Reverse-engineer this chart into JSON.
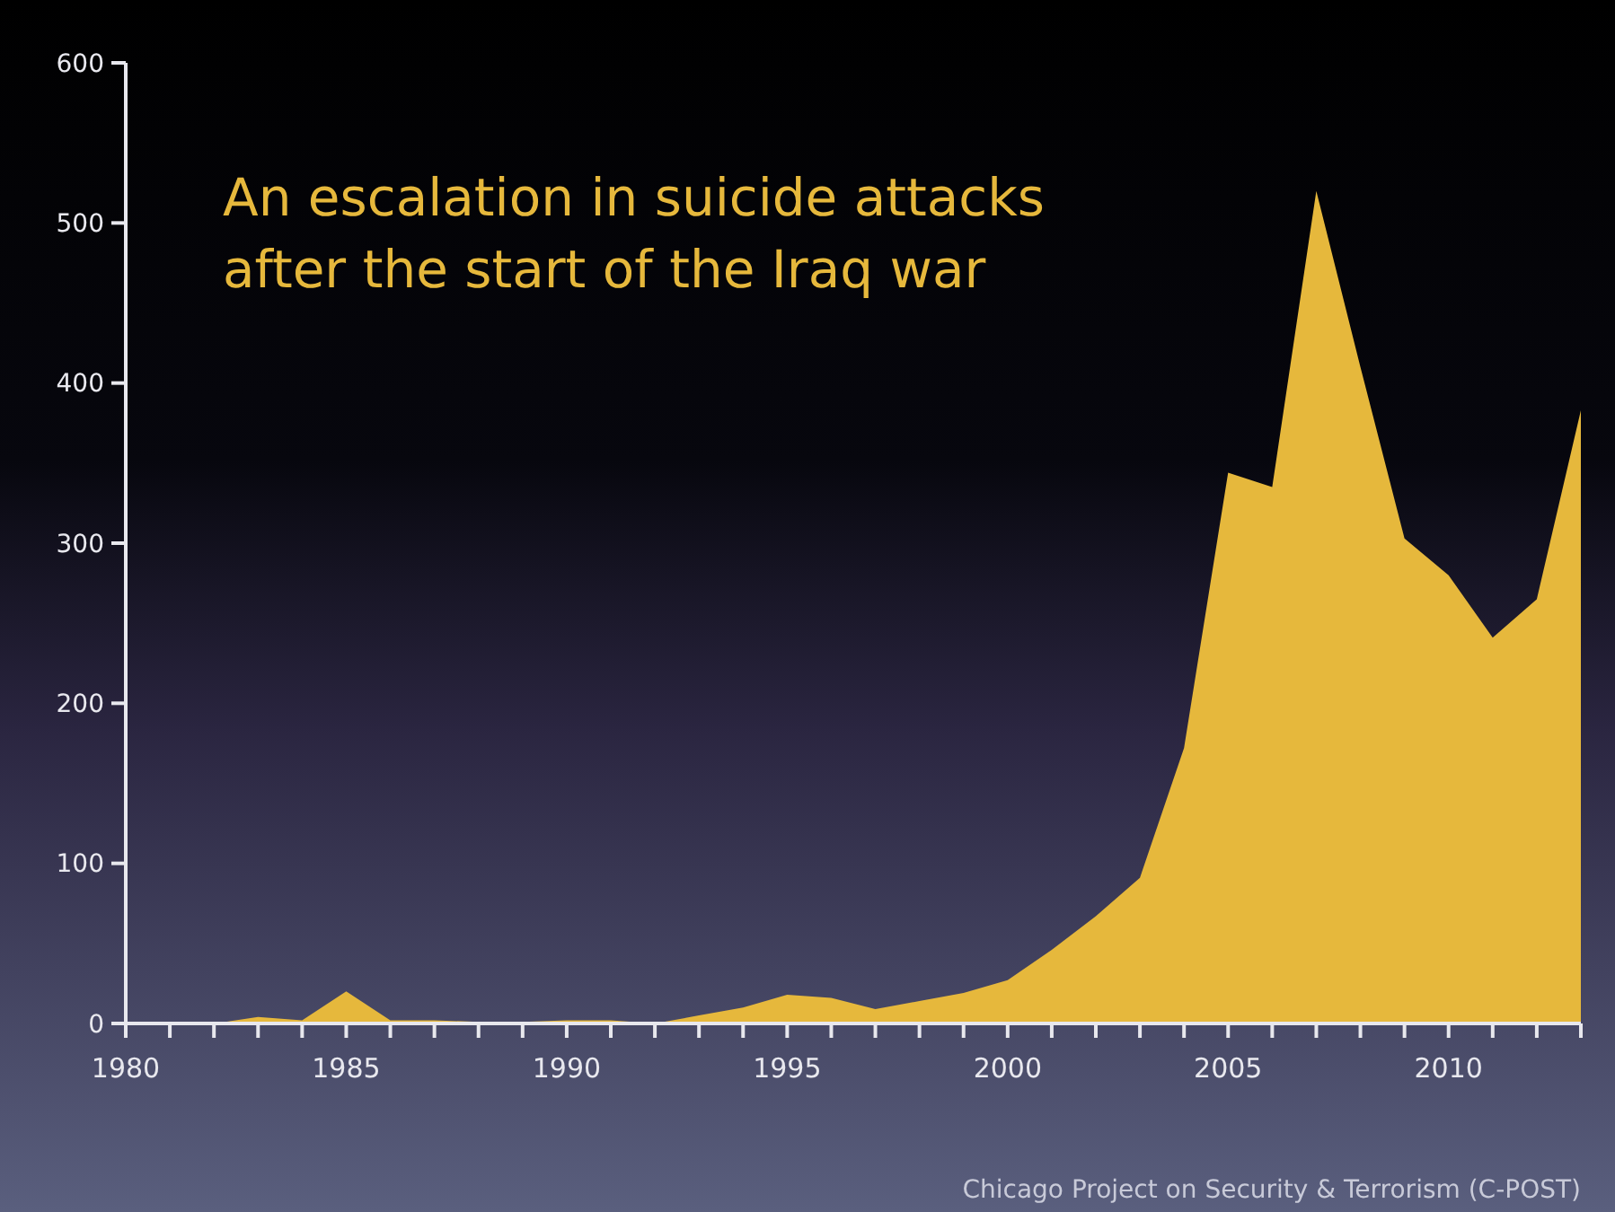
{
  "chart_data": {
    "type": "area",
    "title": "An escalation in suicide attacks after the start of the Iraq war",
    "annotations": [
      "Chicago Project on Security & Terrorism (C-POST)"
    ],
    "x": [
      1980,
      1981,
      1982,
      1983,
      1984,
      1985,
      1986,
      1987,
      1988,
      1989,
      1990,
      1991,
      1992,
      1993,
      1994,
      1995,
      1996,
      1997,
      1998,
      1999,
      2000,
      2001,
      2002,
      2003,
      2004,
      2005,
      2006,
      2007,
      2008,
      2009,
      2010,
      2011,
      2012,
      2013
    ],
    "values": [
      0,
      0,
      0,
      4,
      2,
      20,
      2,
      2,
      1,
      1,
      2,
      2,
      0,
      5,
      10,
      18,
      16,
      9,
      14,
      19,
      27,
      46,
      67,
      91,
      172,
      344,
      335,
      520,
      410,
      303,
      280,
      241,
      265,
      383
    ],
    "color": "#e6b83c",
    "xlim": [
      1980,
      2013
    ],
    "xticks": [
      1980,
      {
        "value": 1981,
        "label": null
      },
      {
        "value": 1982,
        "label": null
      },
      {
        "value": 1983,
        "label": null
      },
      {
        "value": 1984,
        "label": null
      },
      1985,
      {
        "value": 1986,
        "label": null
      },
      {
        "value": 1987,
        "label": null
      },
      {
        "value": 1988,
        "label": null
      },
      {
        "value": 1989,
        "label": null
      },
      1990,
      {
        "value": 1991,
        "label": null
      },
      {
        "value": 1992,
        "label": null
      },
      {
        "value": 1993,
        "label": null
      },
      {
        "value": 1994,
        "label": null
      },
      1995,
      {
        "value": 1996,
        "label": null
      },
      {
        "value": 1997,
        "label": null
      },
      {
        "value": 1998,
        "label": null
      },
      {
        "value": 1999,
        "label": null
      },
      2000,
      {
        "value": 2001,
        "label": null
      },
      {
        "value": 2002,
        "label": null
      },
      {
        "value": 2003,
        "label": null
      },
      {
        "value": 2004,
        "label": null
      },
      2005,
      {
        "value": 2006,
        "label": null
      },
      {
        "value": 2007,
        "label": null
      },
      {
        "value": 2008,
        "label": null
      },
      {
        "value": 2009,
        "label": null
      },
      2010,
      {
        "value": 2011,
        "label": null
      },
      {
        "value": 2012,
        "label": null
      },
      {
        "value": 2013,
        "label": null
      }
    ],
    "ylim": [
      0,
      600
    ],
    "yticks": [
      0,
      100,
      200,
      300,
      400,
      500,
      600
    ],
    "grid": false
  }
}
